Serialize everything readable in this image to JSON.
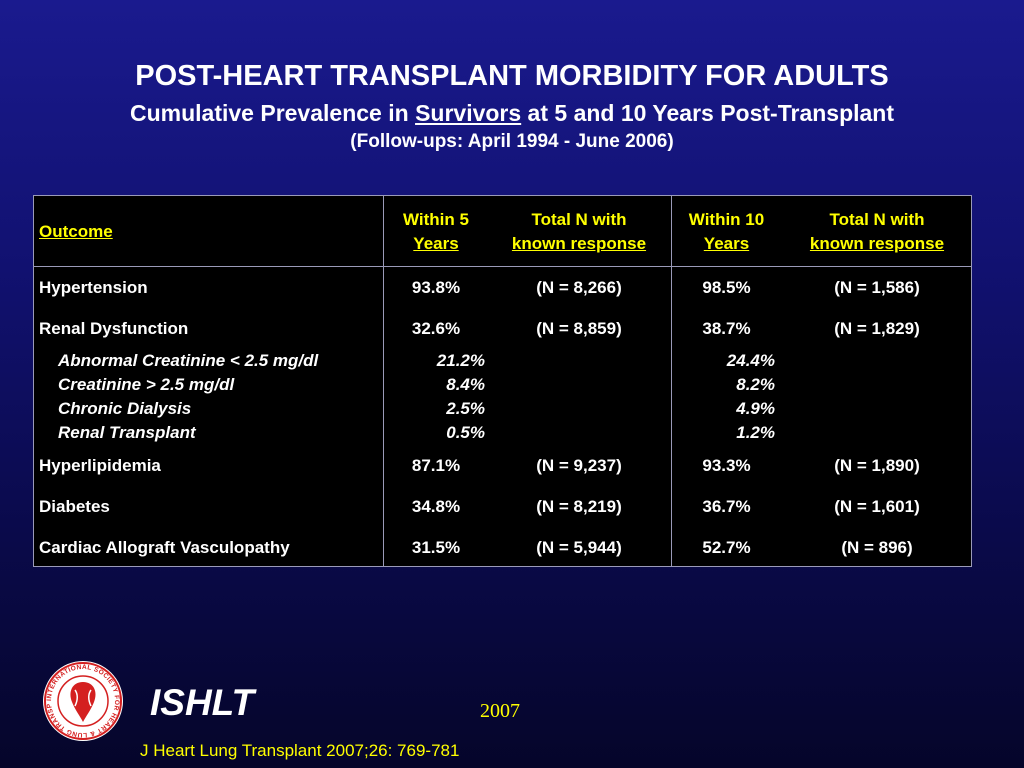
{
  "header": {
    "title": "POST-HEART TRANSPLANT MORBIDITY FOR ADULTS",
    "subtitle_pre": "Cumulative Prevalence in ",
    "subtitle_emph": "Survivors",
    "subtitle_post": " at 5 and 10 Years Post-Transplant",
    "followup": "(Follow-ups: April 1994 - June 2006)"
  },
  "table": {
    "col_outcome": "Outcome",
    "col_within5_line1": "Within 5",
    "col_within5_line2": "Years",
    "col_n5_line1": "Total N with",
    "col_n5_line2": "known response",
    "col_within10_line1": "Within 10",
    "col_within10_line2": "Years",
    "col_n10_line1": "Total N with",
    "col_n10_line2": "known response",
    "rows": [
      {
        "outcome": "Hypertension",
        "w5": "93.8%",
        "n5": "(N = 8,266)",
        "w10": "98.5%",
        "n10": "(N = 1,586)"
      },
      {
        "outcome": "Renal Dysfunction",
        "w5": "32.6%",
        "n5": "(N = 8,859)",
        "w10": "38.7%",
        "n10": "(N = 1,829)"
      },
      {
        "outcome": "Hyperlipidemia",
        "w5": "87.1%",
        "n5": "(N = 9,237)",
        "w10": "93.3%",
        "n10": "(N = 1,890)"
      },
      {
        "outcome": "Diabetes",
        "w5": "34.8%",
        "n5": "(N = 8,219)",
        "w10": "36.7%",
        "n10": "(N = 1,601)"
      },
      {
        "outcome": "Cardiac Allograft Vasculopathy",
        "w5": "31.5%",
        "n5": "(N = 5,944)",
        "w10": "52.7%",
        "n10": "(N = 896)"
      }
    ],
    "renal_subrows": [
      {
        "label": "Abnormal Creatinine < 2.5 mg/dl",
        "w5": "21.2%",
        "w10": "24.4%"
      },
      {
        "label": "Creatinine > 2.5 mg/dl",
        "w5": "8.4%",
        "w10": "8.2%"
      },
      {
        "label": "Chronic Dialysis",
        "w5": "2.5%",
        "w10": "4.9%"
      },
      {
        "label": "Renal Transplant",
        "w5": "0.5%",
        "w10": "1.2%"
      }
    ]
  },
  "footer": {
    "org": "ISHLT",
    "year": "2007",
    "citation": "J Heart Lung Transplant 2007;26: 769-781",
    "logo_text": "INTERNATIONAL SOCIETY FOR HEART & LUNG TRANSPLANTATION"
  },
  "colors": {
    "background": "#111170",
    "accent": "#ffff00",
    "text": "#ffffff",
    "logo_red": "#d42020"
  }
}
